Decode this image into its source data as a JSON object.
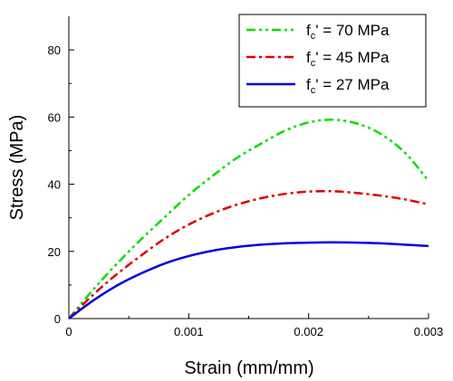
{
  "chart_data": {
    "type": "line",
    "xlabel": "Strain (mm/mm)",
    "ylabel": "Stress (MPa)",
    "xlim": [
      0,
      0.003
    ],
    "ylim": [
      0,
      90
    ],
    "x_ticks": [
      0,
      0.001,
      0.002,
      0.003
    ],
    "x_tick_labels": [
      "0",
      "0.001",
      "0.002",
      "0.003"
    ],
    "y_ticks": [
      0,
      20,
      40,
      60,
      80
    ],
    "y_tick_labels": [
      "0",
      "20",
      "40",
      "60",
      "80"
    ],
    "grid": false,
    "legend_position": "top-right",
    "series": [
      {
        "name": "fc' = 70 MPa",
        "name_main": "f",
        "name_sub": "c",
        "name_rest": "' = 70 MPa",
        "color": "#00e000",
        "style": "dash-dot-dot",
        "x": [
          0,
          0.0002,
          0.0004,
          0.0006,
          0.0008,
          0.001,
          0.0012,
          0.0014,
          0.0016,
          0.0018,
          0.002,
          0.0022,
          0.0024,
          0.0026,
          0.0028,
          0.003
        ],
        "y": [
          0,
          8.5,
          16.3,
          23.5,
          30.2,
          36.8,
          42.5,
          47.8,
          52.0,
          55.9,
          58.4,
          59.2,
          58.1,
          55.0,
          49.5,
          41.0
        ]
      },
      {
        "name": "fc' = 45 MPa",
        "name_main": "f",
        "name_sub": "c",
        "name_rest": "' = 45 MPa",
        "color": "#e00000",
        "style": "dash-dot",
        "x": [
          0,
          0.0002,
          0.0004,
          0.0006,
          0.0008,
          0.001,
          0.0012,
          0.0014,
          0.0016,
          0.0018,
          0.002,
          0.0022,
          0.0024,
          0.0026,
          0.0028,
          0.003
        ],
        "y": [
          0,
          7.0,
          13.2,
          18.7,
          23.8,
          28.0,
          31.3,
          33.9,
          35.8,
          37.1,
          37.8,
          37.9,
          37.4,
          36.6,
          35.5,
          34.0
        ]
      },
      {
        "name": "fc' = 27 MPa",
        "name_main": "f",
        "name_sub": "c",
        "name_rest": "' = 27 MPa",
        "color": "#0000e0",
        "style": "solid",
        "x": [
          0,
          0.0002,
          0.0004,
          0.0006,
          0.0008,
          0.001,
          0.0012,
          0.0014,
          0.0016,
          0.0018,
          0.002,
          0.0022,
          0.0024,
          0.0026,
          0.0028,
          0.003
        ],
        "y": [
          0,
          5.3,
          9.8,
          13.4,
          16.4,
          18.6,
          20.2,
          21.3,
          22.0,
          22.4,
          22.6,
          22.7,
          22.6,
          22.4,
          22.0,
          21.6
        ]
      }
    ]
  }
}
